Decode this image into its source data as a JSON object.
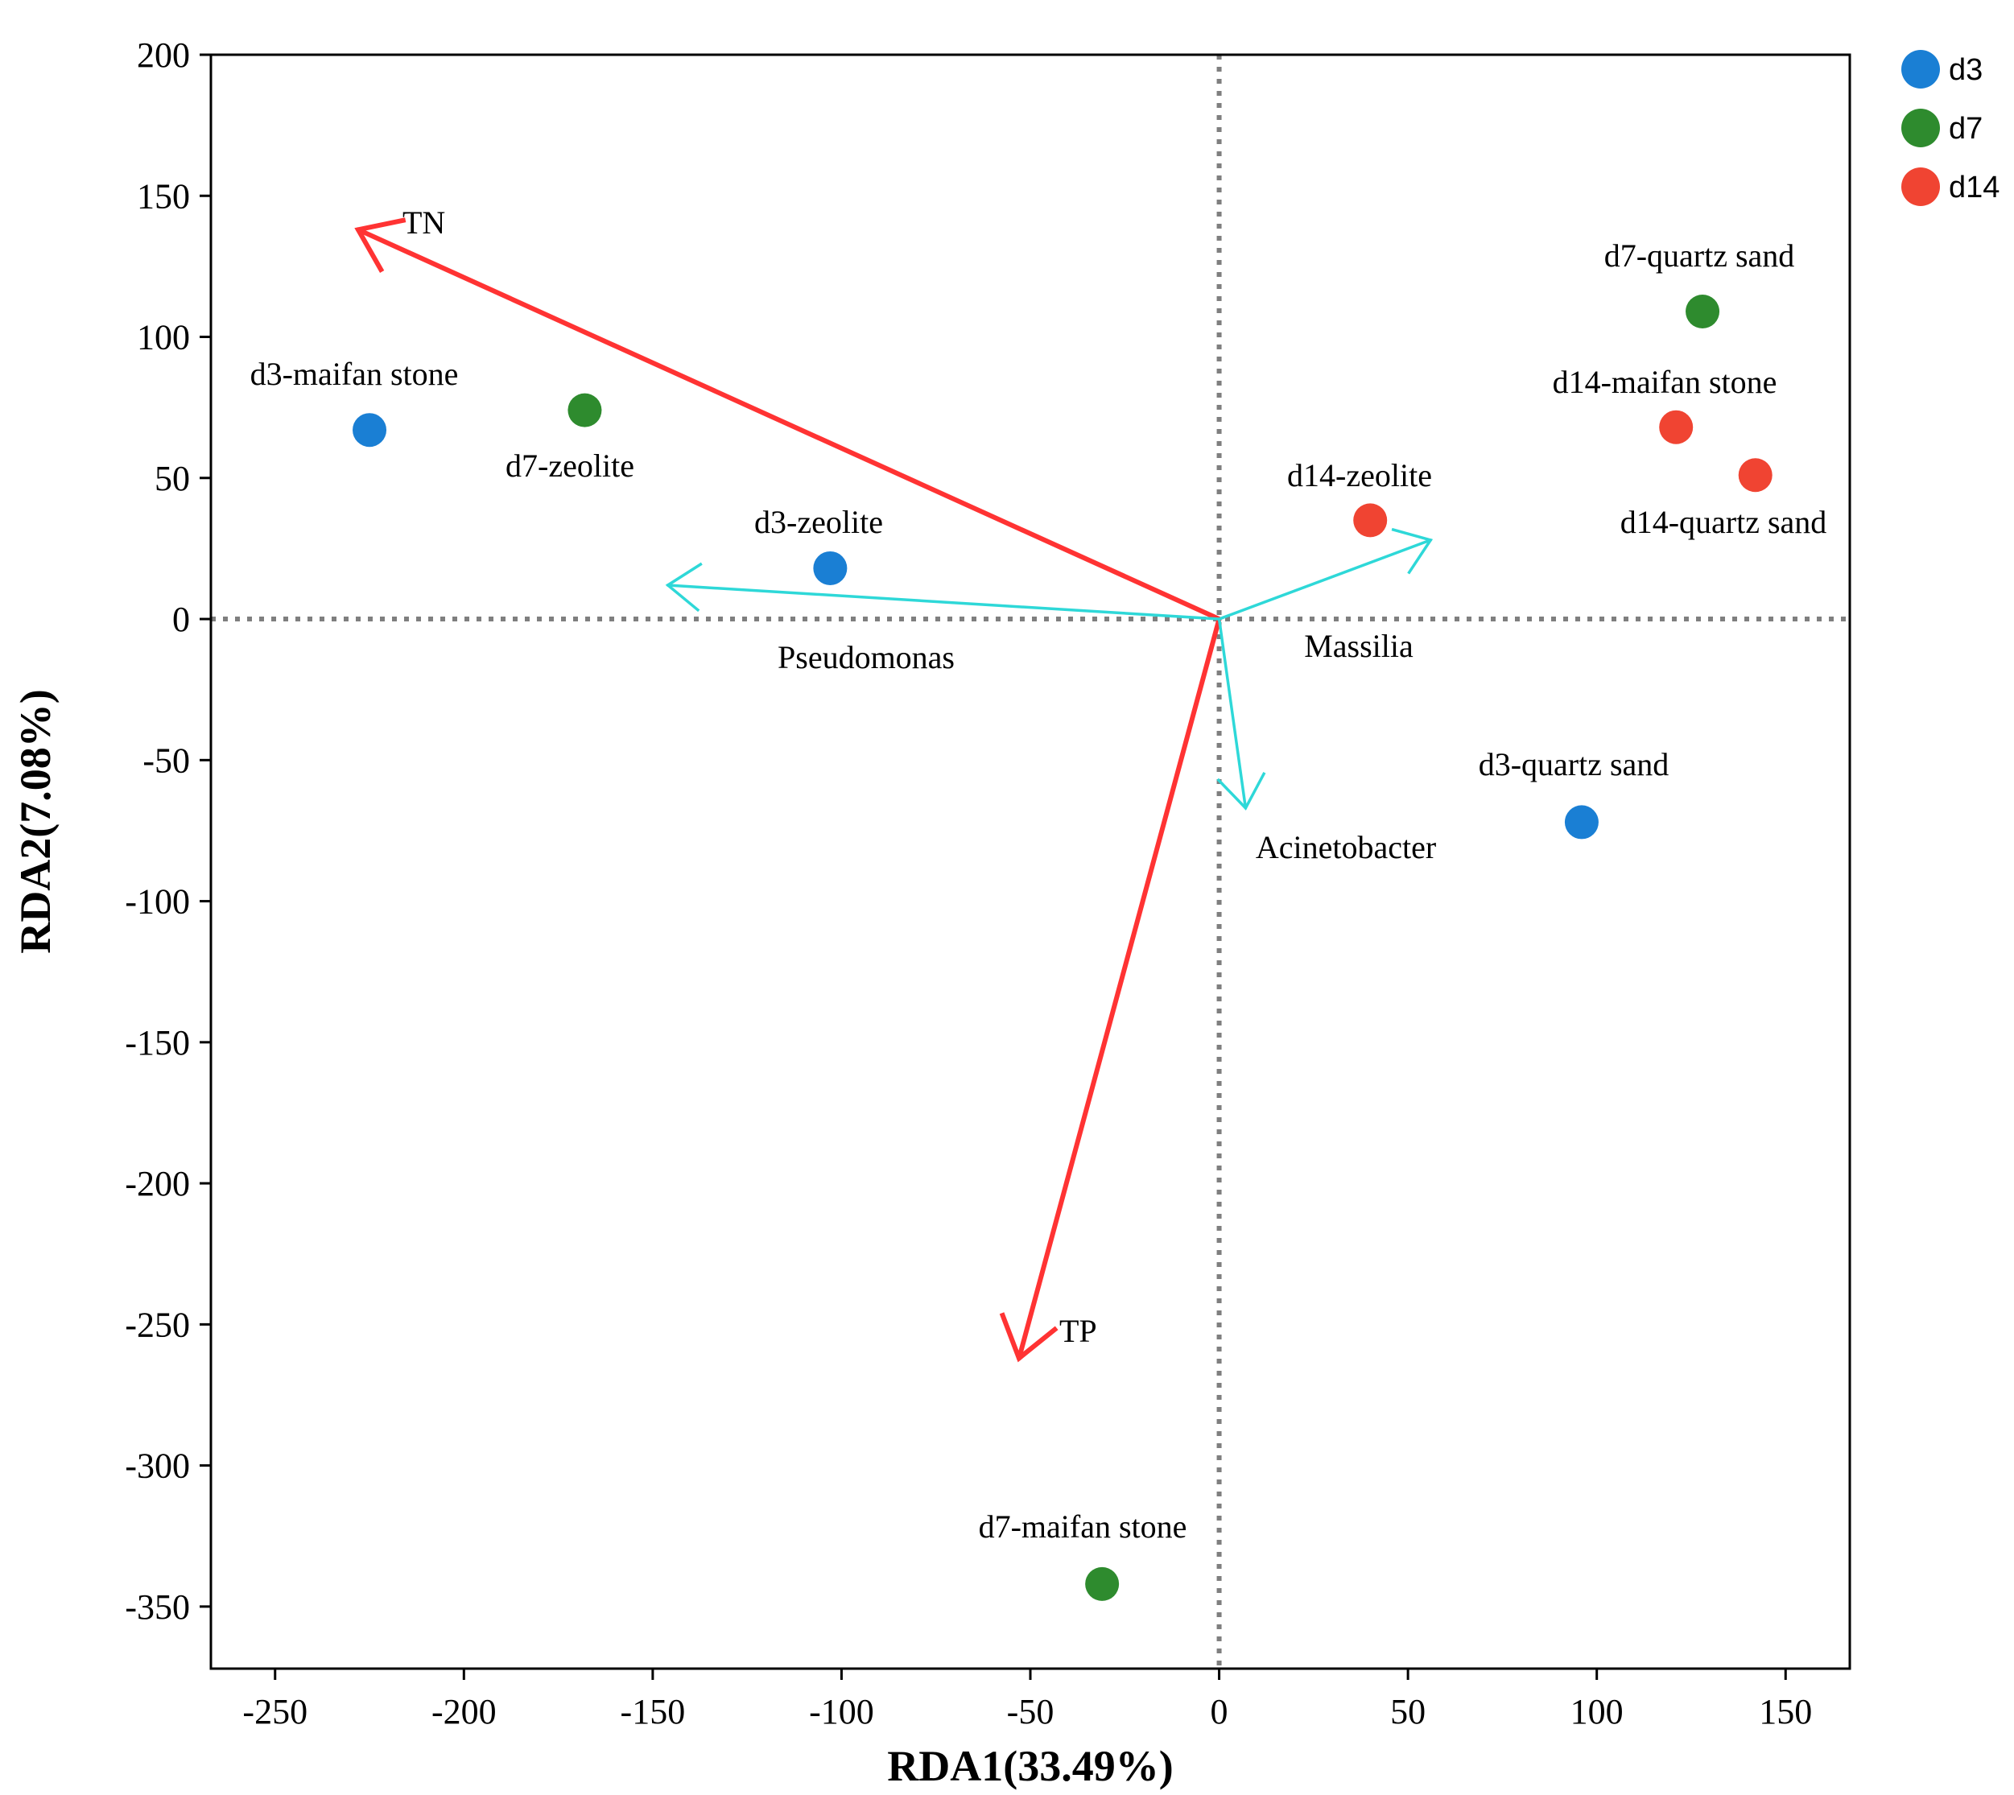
{
  "chart_data": {
    "type": "scatter",
    "title": "",
    "xlabel": "RDA1(33.49%)",
    "ylabel": "RDA2(7.08%)",
    "xlim": [
      -267,
      167
    ],
    "ylim": [
      -372,
      200
    ],
    "x_ticks": [
      -250,
      -200,
      -150,
      -100,
      -50,
      0,
      50,
      100,
      150
    ],
    "y_ticks": [
      200,
      150,
      100,
      50,
      0,
      -50,
      -100,
      -150,
      -200,
      -250,
      -300,
      -350
    ],
    "reference_lines": {
      "x": 0,
      "y": 0,
      "style": "dotted"
    },
    "groups": [
      {
        "name": "d3",
        "color": "#1a7fd4"
      },
      {
        "name": "d7",
        "color": "#2e8b2e"
      },
      {
        "name": "d14",
        "color": "#f04432"
      }
    ],
    "points": [
      {
        "label": "d3-maifan stone",
        "group": "d3",
        "x": -225,
        "y": 67
      },
      {
        "label": "d3-zeolite",
        "group": "d3",
        "x": -103,
        "y": 18
      },
      {
        "label": "d3-quartz sand",
        "group": "d3",
        "x": 96,
        "y": -72
      },
      {
        "label": "d7-zeolite",
        "group": "d7",
        "x": -168,
        "y": 74
      },
      {
        "label": "d7-quartz sand",
        "group": "d7",
        "x": 128,
        "y": 109
      },
      {
        "label": "d7-maifan stone",
        "group": "d7",
        "x": -31,
        "y": -342
      },
      {
        "label": "d14-maifan stone",
        "group": "d14",
        "x": 121,
        "y": 68
      },
      {
        "label": "d14-quartz sand",
        "group": "d14",
        "x": 142,
        "y": 51
      },
      {
        "label": "d14-zeolite",
        "group": "d14",
        "x": 40,
        "y": 35
      }
    ],
    "env_vectors": [
      {
        "label": "TN",
        "x": -228,
        "y": 138,
        "color": "#ff3333"
      },
      {
        "label": "TP",
        "x": -53,
        "y": -262,
        "color": "#ff3333"
      }
    ],
    "species_vectors": [
      {
        "label": "Pseudomonas",
        "x": -146,
        "y": 12,
        "color": "#2ed8d8"
      },
      {
        "label": "Massilia",
        "x": 56,
        "y": 28,
        "color": "#2ed8d8"
      },
      {
        "label": "Acinetobacter",
        "x": 7,
        "y": -67,
        "color": "#2ed8d8"
      }
    ],
    "legend": {
      "position": "top-right",
      "entries": [
        "d3",
        "d7",
        "d14"
      ]
    }
  }
}
